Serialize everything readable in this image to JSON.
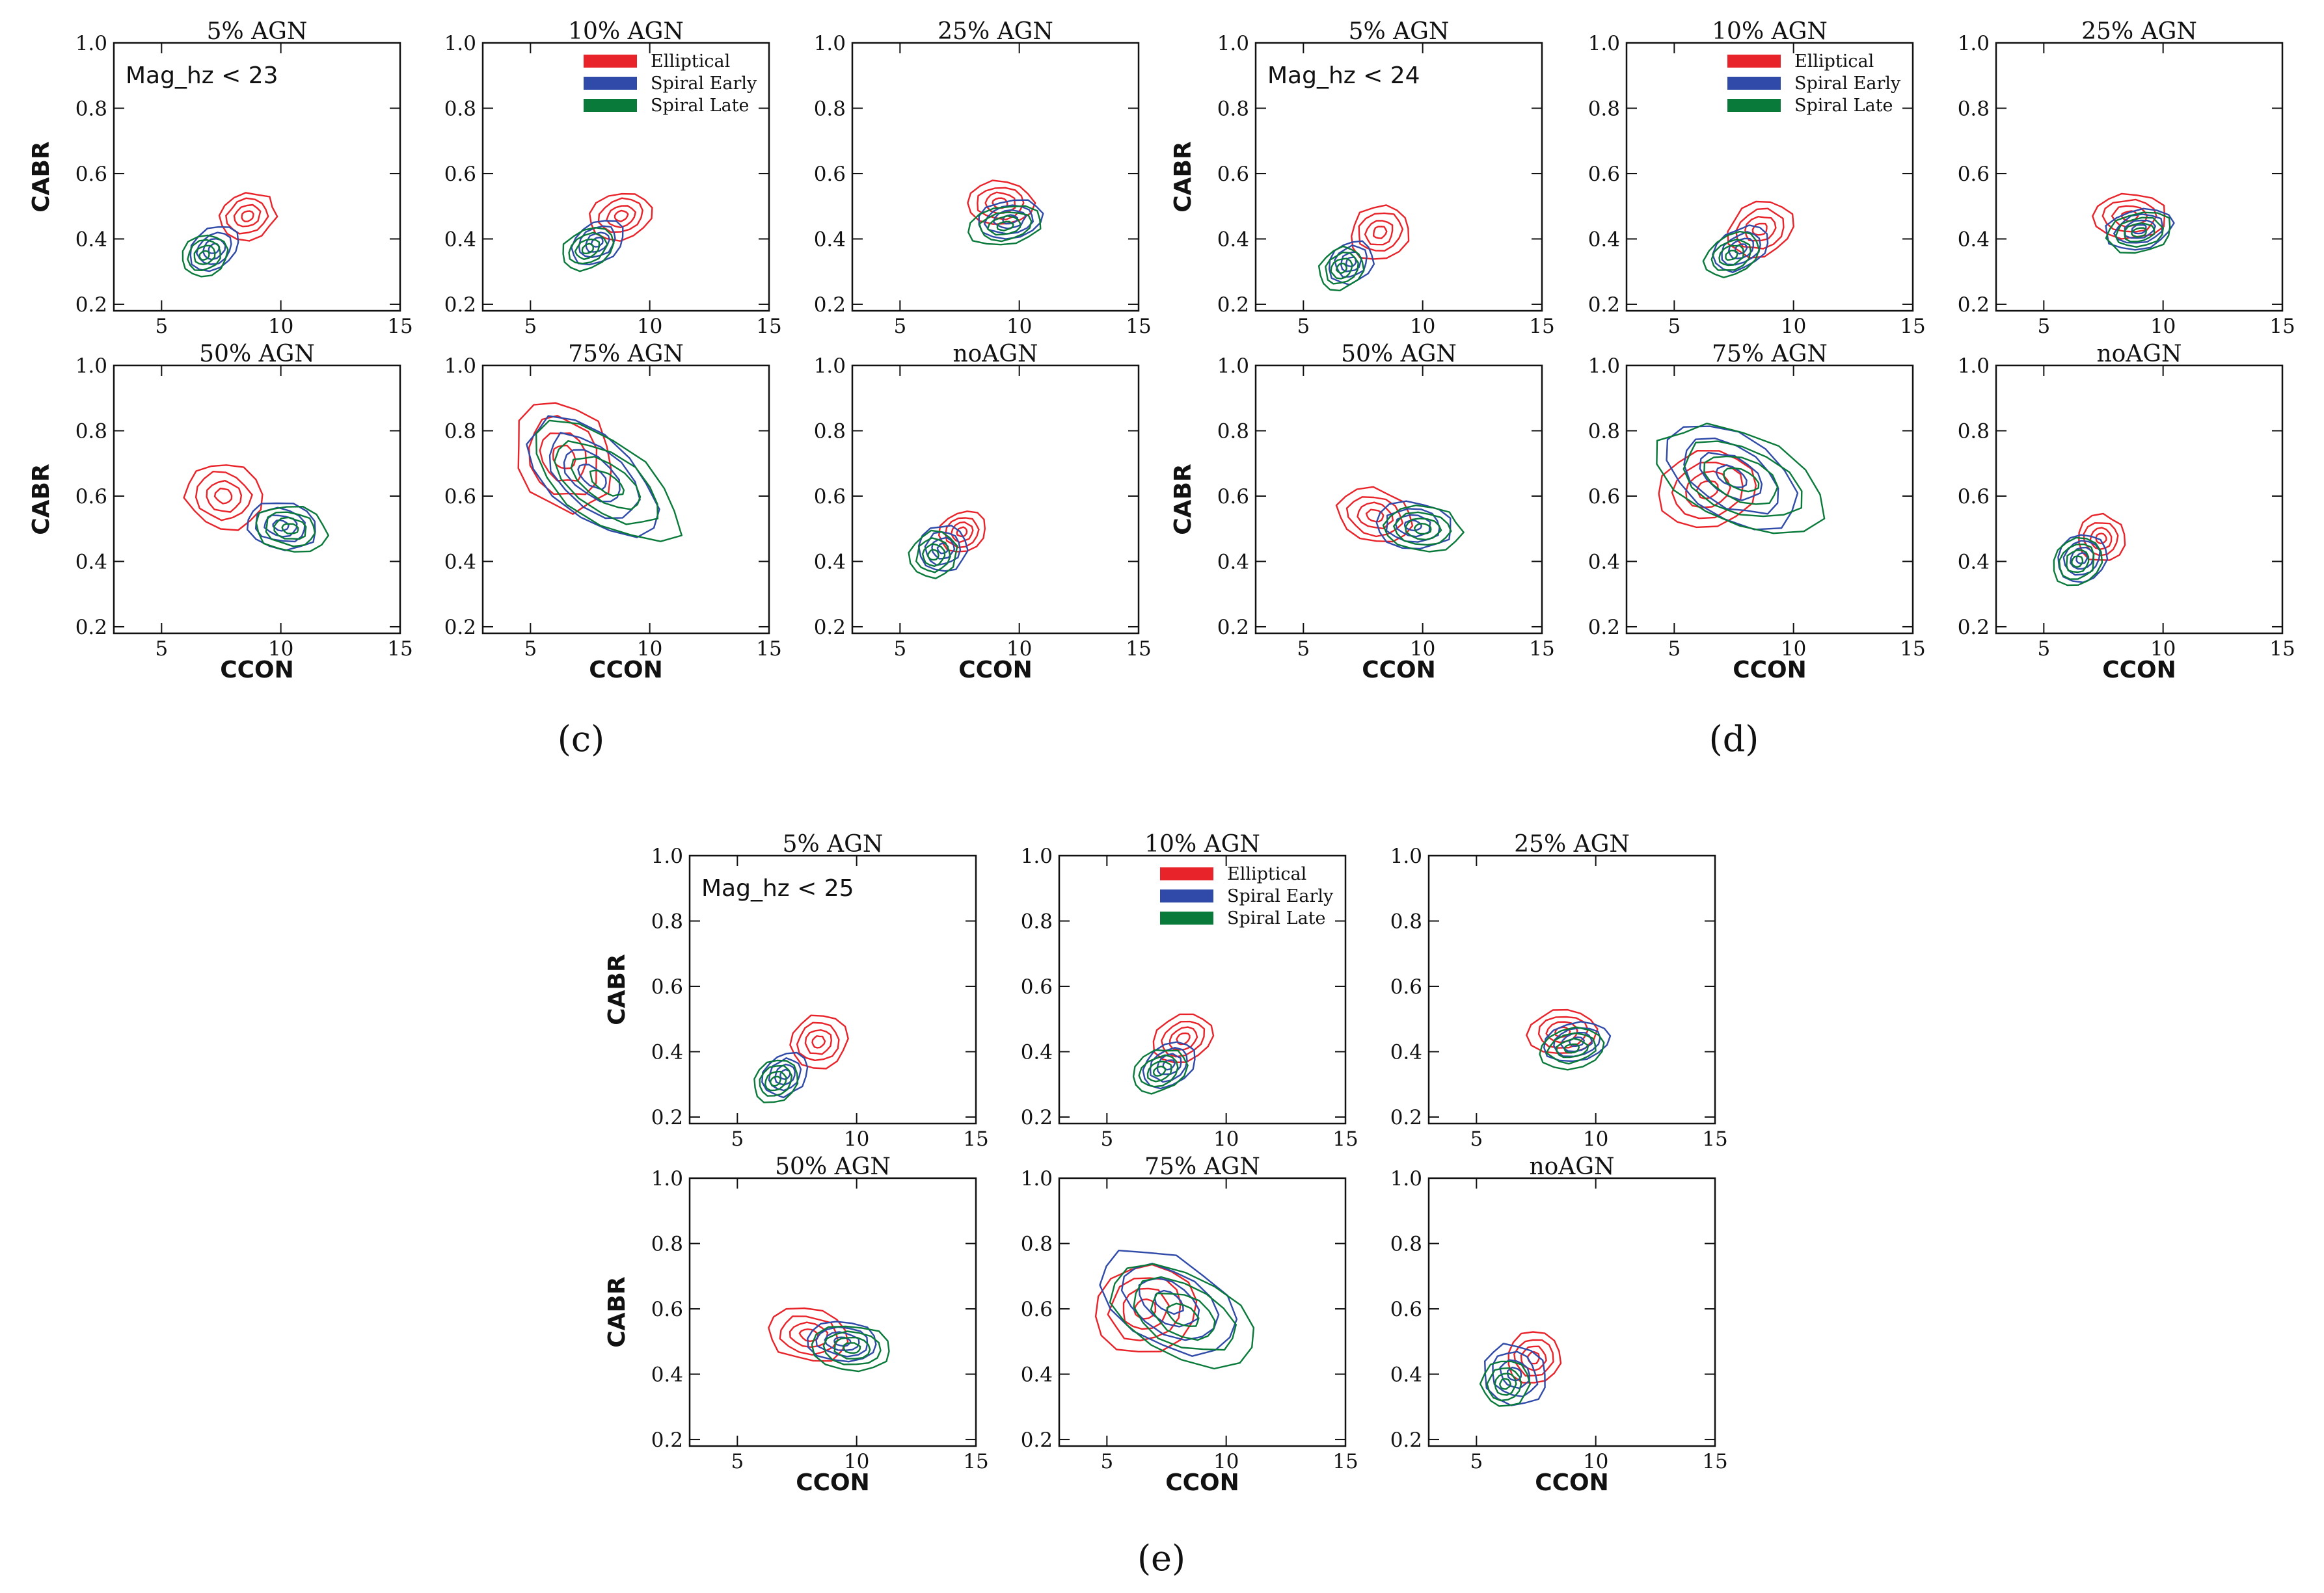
{
  "figure": {
    "colors": {
      "Elliptical": "#e8242a",
      "Spiral Early": "#2f4aa8",
      "Spiral Late": "#0a7a3a"
    },
    "legend": [
      "Elliptical",
      "Spiral Early",
      "Spiral Late"
    ]
  },
  "chart_data": [
    {
      "group": "(c)",
      "note": "Mag_hz < 23",
      "type": "contour",
      "xlabel": "CCON",
      "ylabel": "CABR",
      "xlim": [
        3,
        15
      ],
      "ylim": [
        0.18,
        1.0
      ],
      "xticks": [
        5,
        10,
        15
      ],
      "yticks": [
        "0.2",
        "0.4",
        "0.6",
        "0.8",
        "1.0"
      ],
      "panels": [
        {
          "title": "5% AGN",
          "series": [
            {
              "name": "Elliptical",
              "cx": 8.6,
              "cy": 0.47,
              "sx": 1.2,
              "sy": 0.07,
              "rot": 20
            },
            {
              "name": "Spiral Early",
              "cx": 7.2,
              "cy": 0.37,
              "sx": 1.1,
              "sy": 0.06,
              "rot": 35
            },
            {
              "name": "Spiral Late",
              "cx": 6.8,
              "cy": 0.35,
              "sx": 1.0,
              "sy": 0.06,
              "rot": 35
            }
          ]
        },
        {
          "title": "10% AGN",
          "series": [
            {
              "name": "Elliptical",
              "cx": 8.8,
              "cy": 0.47,
              "sx": 1.3,
              "sy": 0.07,
              "rot": 15
            },
            {
              "name": "Spiral Early",
              "cx": 7.8,
              "cy": 0.39,
              "sx": 1.2,
              "sy": 0.06,
              "rot": 30
            },
            {
              "name": "Spiral Late",
              "cx": 7.4,
              "cy": 0.37,
              "sx": 1.2,
              "sy": 0.06,
              "rot": 30
            }
          ]
        },
        {
          "title": "25% AGN",
          "series": [
            {
              "name": "Elliptical",
              "cx": 9.2,
              "cy": 0.51,
              "sx": 1.4,
              "sy": 0.07,
              "rot": 0
            },
            {
              "name": "Spiral Early",
              "cx": 9.6,
              "cy": 0.46,
              "sx": 1.4,
              "sy": 0.06,
              "rot": 10
            },
            {
              "name": "Spiral Late",
              "cx": 9.4,
              "cy": 0.44,
              "sx": 1.5,
              "sy": 0.06,
              "rot": 10
            }
          ]
        },
        {
          "title": "50% AGN",
          "series": [
            {
              "name": "Elliptical",
              "cx": 7.6,
              "cy": 0.6,
              "sx": 1.6,
              "sy": 0.1,
              "rot": -20
            },
            {
              "name": "Spiral Early",
              "cx": 10.0,
              "cy": 0.51,
              "sx": 1.5,
              "sy": 0.07,
              "rot": -10
            },
            {
              "name": "Spiral Late",
              "cx": 10.4,
              "cy": 0.5,
              "sx": 1.5,
              "sy": 0.07,
              "rot": -10
            }
          ]
        },
        {
          "title": "75% AGN",
          "series": [
            {
              "name": "Elliptical",
              "cx": 6.4,
              "cy": 0.72,
              "sx": 2.4,
              "sy": 0.14,
              "rot": -60
            },
            {
              "name": "Spiral Early",
              "cx": 7.6,
              "cy": 0.66,
              "sx": 3.2,
              "sy": 0.12,
              "rot": -40
            },
            {
              "name": "Spiral Late",
              "cx": 8.2,
              "cy": 0.64,
              "sx": 3.6,
              "sy": 0.12,
              "rot": -35
            }
          ]
        },
        {
          "title": "noAGN",
          "series": [
            {
              "name": "Elliptical",
              "cx": 7.6,
              "cy": 0.49,
              "sx": 1.0,
              "sy": 0.06,
              "rot": 30
            },
            {
              "name": "Spiral Early",
              "cx": 6.8,
              "cy": 0.44,
              "sx": 1.0,
              "sy": 0.07,
              "rot": 45
            },
            {
              "name": "Spiral Late",
              "cx": 6.4,
              "cy": 0.42,
              "sx": 1.0,
              "sy": 0.07,
              "rot": 45
            }
          ]
        }
      ]
    },
    {
      "group": "(d)",
      "note": "Mag_hz < 24",
      "type": "contour",
      "xlabel": "CCON",
      "ylabel": "CABR",
      "xlim": [
        3,
        15
      ],
      "ylim": [
        0.18,
        1.0
      ],
      "xticks": [
        5,
        10,
        15
      ],
      "yticks": [
        "0.2",
        "0.4",
        "0.6",
        "0.8",
        "1.0"
      ],
      "panels": [
        {
          "title": "5% AGN",
          "series": [
            {
              "name": "Elliptical",
              "cx": 8.2,
              "cy": 0.42,
              "sx": 1.3,
              "sy": 0.08,
              "rot": 30
            },
            {
              "name": "Spiral Early",
              "cx": 7.0,
              "cy": 0.33,
              "sx": 1.0,
              "sy": 0.06,
              "rot": 40
            },
            {
              "name": "Spiral Late",
              "cx": 6.6,
              "cy": 0.31,
              "sx": 1.0,
              "sy": 0.06,
              "rot": 40
            }
          ]
        },
        {
          "title": "10% AGN",
          "series": [
            {
              "name": "Elliptical",
              "cx": 8.6,
              "cy": 0.43,
              "sx": 1.4,
              "sy": 0.08,
              "rot": 25
            },
            {
              "name": "Spiral Early",
              "cx": 7.8,
              "cy": 0.37,
              "sx": 1.2,
              "sy": 0.06,
              "rot": 30
            },
            {
              "name": "Spiral Late",
              "cx": 7.4,
              "cy": 0.35,
              "sx": 1.2,
              "sy": 0.06,
              "rot": 30
            }
          ]
        },
        {
          "title": "25% AGN",
          "series": [
            {
              "name": "Elliptical",
              "cx": 8.6,
              "cy": 0.47,
              "sx": 1.5,
              "sy": 0.07,
              "rot": 0
            },
            {
              "name": "Spiral Early",
              "cx": 9.0,
              "cy": 0.43,
              "sx": 1.4,
              "sy": 0.06,
              "rot": 10
            },
            {
              "name": "Spiral Late",
              "cx": 9.0,
              "cy": 0.42,
              "sx": 1.4,
              "sy": 0.06,
              "rot": 10
            }
          ]
        },
        {
          "title": "50% AGN",
          "series": [
            {
              "name": "Elliptical",
              "cx": 8.0,
              "cy": 0.54,
              "sx": 1.6,
              "sy": 0.08,
              "rot": -15
            },
            {
              "name": "Spiral Early",
              "cx": 9.6,
              "cy": 0.51,
              "sx": 1.6,
              "sy": 0.07,
              "rot": -5
            },
            {
              "name": "Spiral Late",
              "cx": 10.0,
              "cy": 0.5,
              "sx": 1.6,
              "sy": 0.07,
              "rot": -5
            }
          ]
        },
        {
          "title": "75% AGN",
          "series": [
            {
              "name": "Elliptical",
              "cx": 6.4,
              "cy": 0.62,
              "sx": 1.6,
              "sy": 0.15,
              "rot": -75
            },
            {
              "name": "Spiral Early",
              "cx": 7.4,
              "cy": 0.66,
              "sx": 3.0,
              "sy": 0.13,
              "rot": -30
            },
            {
              "name": "Spiral Late",
              "cx": 7.8,
              "cy": 0.65,
              "sx": 3.6,
              "sy": 0.14,
              "rot": -25
            }
          ]
        },
        {
          "title": "noAGN",
          "series": [
            {
              "name": "Elliptical",
              "cx": 7.4,
              "cy": 0.47,
              "sx": 1.0,
              "sy": 0.07,
              "rot": 35
            },
            {
              "name": "Spiral Early",
              "cx": 6.6,
              "cy": 0.41,
              "sx": 1.1,
              "sy": 0.07,
              "rot": 45
            },
            {
              "name": "Spiral Late",
              "cx": 6.4,
              "cy": 0.4,
              "sx": 1.1,
              "sy": 0.07,
              "rot": 45
            }
          ]
        }
      ]
    },
    {
      "group": "(e)",
      "note": "Mag_hz < 25",
      "type": "contour",
      "xlabel": "CCON",
      "ylabel": "CABR",
      "xlim": [
        3,
        15
      ],
      "ylim": [
        0.18,
        1.0
      ],
      "xticks": [
        5,
        10,
        15
      ],
      "yticks": [
        "0.2",
        "0.4",
        "0.6",
        "0.8",
        "1.0"
      ],
      "panels": [
        {
          "title": "5% AGN",
          "series": [
            {
              "name": "Elliptical",
              "cx": 8.4,
              "cy": 0.43,
              "sx": 1.2,
              "sy": 0.08,
              "rot": 30
            },
            {
              "name": "Spiral Early",
              "cx": 7.0,
              "cy": 0.33,
              "sx": 1.0,
              "sy": 0.06,
              "rot": 40
            },
            {
              "name": "Spiral Late",
              "cx": 6.6,
              "cy": 0.31,
              "sx": 1.0,
              "sy": 0.06,
              "rot": 40
            }
          ]
        },
        {
          "title": "10% AGN",
          "series": [
            {
              "name": "Elliptical",
              "cx": 8.2,
              "cy": 0.44,
              "sx": 1.3,
              "sy": 0.07,
              "rot": 25
            },
            {
              "name": "Spiral Early",
              "cx": 7.6,
              "cy": 0.36,
              "sx": 1.2,
              "sy": 0.06,
              "rot": 30
            },
            {
              "name": "Spiral Late",
              "cx": 7.2,
              "cy": 0.34,
              "sx": 1.2,
              "sy": 0.06,
              "rot": 30
            }
          ]
        },
        {
          "title": "25% AGN",
          "series": [
            {
              "name": "Elliptical",
              "cx": 8.6,
              "cy": 0.46,
              "sx": 1.4,
              "sy": 0.07,
              "rot": 5
            },
            {
              "name": "Spiral Early",
              "cx": 9.2,
              "cy": 0.43,
              "sx": 1.4,
              "sy": 0.06,
              "rot": 10
            },
            {
              "name": "Spiral Late",
              "cx": 9.0,
              "cy": 0.41,
              "sx": 1.4,
              "sy": 0.06,
              "rot": 10
            }
          ]
        },
        {
          "title": "50% AGN",
          "series": [
            {
              "name": "Elliptical",
              "cx": 8.0,
              "cy": 0.52,
              "sx": 1.7,
              "sy": 0.08,
              "rot": -10
            },
            {
              "name": "Spiral Early",
              "cx": 9.4,
              "cy": 0.5,
              "sx": 1.5,
              "sy": 0.06,
              "rot": -5
            },
            {
              "name": "Spiral Late",
              "cx": 9.8,
              "cy": 0.48,
              "sx": 1.6,
              "sy": 0.07,
              "rot": -5
            }
          ]
        },
        {
          "title": "75% AGN",
          "series": [
            {
              "name": "Elliptical",
              "cx": 6.6,
              "cy": 0.6,
              "sx": 1.8,
              "sy": 0.15,
              "rot": -70
            },
            {
              "name": "Spiral Early",
              "cx": 7.6,
              "cy": 0.62,
              "sx": 3.0,
              "sy": 0.13,
              "rot": -30
            },
            {
              "name": "Spiral Late",
              "cx": 8.2,
              "cy": 0.58,
              "sx": 3.2,
              "sy": 0.13,
              "rot": -25
            }
          ]
        },
        {
          "title": "noAGN",
          "series": [
            {
              "name": "Elliptical",
              "cx": 7.4,
              "cy": 0.45,
              "sx": 1.1,
              "sy": 0.08,
              "rot": 40
            },
            {
              "name": "Spiral Early",
              "cx": 6.6,
              "cy": 0.4,
              "sx": 1.2,
              "sy": 0.1,
              "rot": 55
            },
            {
              "name": "Spiral Late",
              "cx": 6.2,
              "cy": 0.37,
              "sx": 1.0,
              "sy": 0.07,
              "rot": 50
            }
          ]
        }
      ]
    }
  ]
}
